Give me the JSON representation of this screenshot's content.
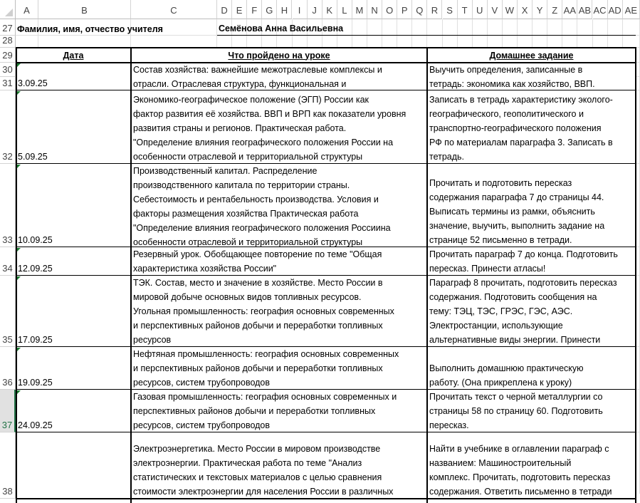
{
  "columns": [
    "A",
    "B",
    "C",
    "D",
    "E",
    "F",
    "G",
    "H",
    "I",
    "J",
    "K",
    "L",
    "M",
    "N",
    "O",
    "P",
    "Q",
    "R",
    "S",
    "T",
    "U",
    "V",
    "W",
    "X",
    "Y",
    "Z",
    "AA",
    "AB",
    "AC",
    "AD",
    "AE"
  ],
  "selected_row": "37",
  "teacher": {
    "label": "Фамилия, имя, отчество учителя",
    "name": "Семёнова Анна Васильевна"
  },
  "table": {
    "headers": {
      "date": "Дата",
      "lesson": "Что пройдено на уроке",
      "homework": "Домашнее задание"
    },
    "rows": [
      {
        "row_numbers": [
          "30",
          "31"
        ],
        "date": "3.09.25",
        "lesson": "Состав хозяйства: важнейшие межотраслевые комплексы и\nотрасли. Отраслевая структура, функциональная и",
        "homework": "Выучить определения, записанные в\nтетрадь: экономика как хозяйство, ВВП."
      },
      {
        "row_numbers": [
          "32"
        ],
        "date": "5.09.25",
        "lesson": "Экономико-географическое положение (ЭГП) России как\nфактор развития её хозяйства. ВВП и ВРП как показатели уровня\nразвития страны и регионов. Практическая работа.\n\"Определение влияния географического положения России на\nособенности отраслевой и территориальной структуры",
        "homework": "Записать в тетрадь характеристику эколого-\nгеографического, геополитического и\nтранспортно-географического положения\nРФ по материалам параграфа 3. Записать в\nтетрадь."
      },
      {
        "row_numbers": [
          "33"
        ],
        "date": "10.09.25",
        "lesson": "Производственный капитал. Распределение\nпроизводственного капитала по территории страны.\nСебестоимость и рентабельность производства. Условия и\nфакторы размещения хозяйства Практическая работа\n\"Определение влияния географического положения Россиина\nособенности отраслевой и территориальной структуры",
        "homework": "Прочитать и подготовить пересказ\nсодержания параграфа 7 до страницы 44.\nВыписать термины из рамки, объяснить\nзначение, выучить, выполнить задание на\nстранице 52 письменно в тетради."
      },
      {
        "row_numbers": [
          "34"
        ],
        "date": "12.09.25",
        "lesson": "Резервный урок. Обобщающее повторение по теме \"Общая\nхарактеристика хозяйства России\"",
        "homework": "Прочитать параграф 7 до конца. Подготовить\nпересказ. Принести атласы!"
      },
      {
        "row_numbers": [
          "35"
        ],
        "date": "17.09.25",
        "lesson": "ТЭК. Состав, место и значение в хозяйстве. Место России в\nмировой добыче основных видов топливных ресурсов.\nУгольная промышленность: география основных современных\nи перспективных районов добычи и переработки топливных\nресурсов",
        "homework": "Параграф 8 прочитать, подготовить пересказ\nсодержания. Подготовить сообщения на\nтему: ТЭЦ, ТЭС, ГРЭС, ГЭС, АЭС.\nЭлектростанции, использующие\nальтернативные виды энергии. Принести\n"
      },
      {
        "row_numbers": [
          "36"
        ],
        "date": "19.09.25",
        "lesson": "Нефтяная промышленность: география основных современных\nи перспективных районов добычи и переработки топливных\nресурсов, систем трубопроводов",
        "homework": "Выполнить домашнюю практическую\nработу. (Она прикреплена к уроку)"
      },
      {
        "row_numbers": [
          "37"
        ],
        "date": "24.09.25",
        "lesson": "Газовая промышленность: география основных современных и\nперспективных районов добычи и переработки топливных\nресурсов, систем трубопроводов",
        "homework": "Прочитать текст о черной металлургии со\nстраницы 58 по страницу 60. Подготовить\nпересказ."
      },
      {
        "row_numbers": [
          "38"
        ],
        "date": "",
        "lesson": "Электроэнергетика. Место России в мировом производстве\nэлектроэнергии. Практическая работа по теме \"Анализ\nстатистических и текстовых материалов с целью сравнения\nстоимости электроэнергии для населения России в различных\n",
        "homework": "Найти в учебнике в оглавлении параграф с\nназванием: Машиностроительный\nкомплекс. Прочитать, подготовить пересказ\nсодержания. Ответить письменно в тетради\n"
      }
    ]
  }
}
